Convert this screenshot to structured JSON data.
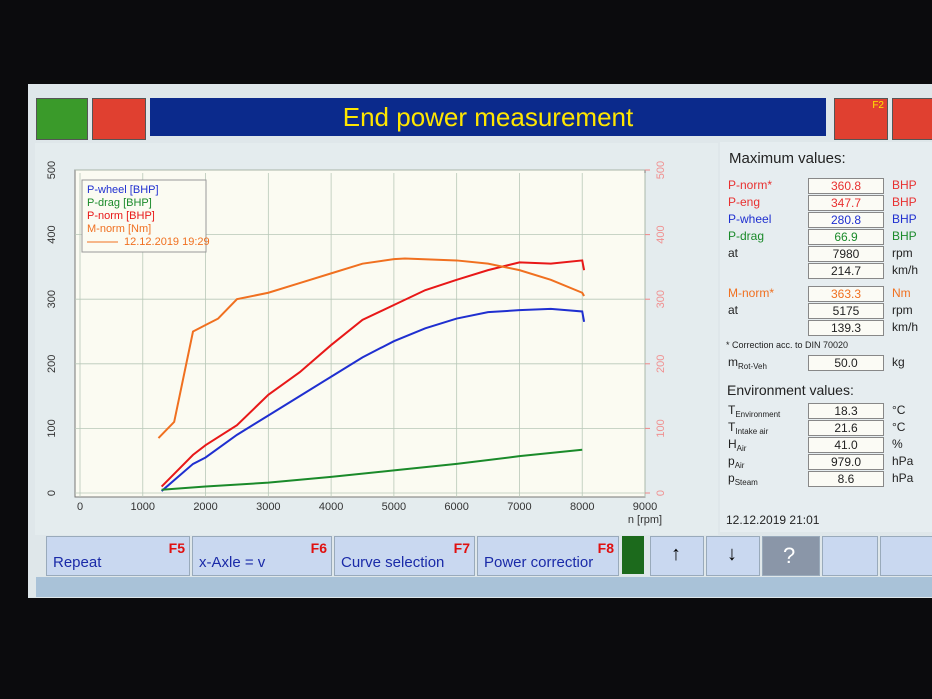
{
  "header": {
    "title": "End power measurement",
    "key": "F2"
  },
  "chart_data": {
    "type": "line",
    "x_label": "n [rpm]",
    "xlim": [
      0,
      9000
    ],
    "xticks": [
      0,
      1000,
      2000,
      3000,
      4000,
      5000,
      6000,
      7000,
      8000,
      9000
    ],
    "ylim": [
      0,
      500
    ],
    "yticks": [
      0,
      100,
      200,
      300,
      400,
      500
    ],
    "y2lim": [
      0,
      500
    ],
    "y2ticks": [
      0,
      100,
      200,
      300,
      400,
      500
    ],
    "grid": true,
    "legend_date": "12.12.2019 19:29",
    "series": [
      {
        "name": "P-wheel [BHP]",
        "color": "#1f2fd0",
        "x": [
          1300,
          1800,
          2000,
          2500,
          3000,
          3500,
          4000,
          4500,
          5000,
          5500,
          6000,
          6500,
          7000,
          7500,
          8000,
          8030
        ],
        "values": [
          3,
          45,
          55,
          90,
          120,
          150,
          180,
          210,
          235,
          255,
          270,
          280,
          283,
          285,
          281,
          265
        ]
      },
      {
        "name": "P-drag [BHP]",
        "color": "#1a8a2a",
        "x": [
          1300,
          2000,
          3000,
          4000,
          5000,
          6000,
          7000,
          8000
        ],
        "values": [
          5,
          10,
          16,
          25,
          35,
          45,
          57,
          67
        ]
      },
      {
        "name": "P-norm [BHP]",
        "color": "#e81818",
        "x": [
          1300,
          1800,
          2000,
          2500,
          3000,
          3500,
          4000,
          4500,
          5000,
          5500,
          6000,
          6500,
          7000,
          7500,
          8000,
          8030
        ],
        "values": [
          10,
          59,
          74,
          105,
          152,
          187,
          229,
          268,
          291,
          314,
          330,
          345,
          357,
          355,
          360,
          345
        ]
      },
      {
        "name": "M-norm [Nm]",
        "color": "#f07020",
        "axis": "y2",
        "x": [
          1250,
          1500,
          1800,
          2000,
          2200,
          2500,
          3000,
          3500,
          4000,
          4500,
          5000,
          5175,
          6000,
          6500,
          7000,
          7500,
          8000,
          8030
        ],
        "values": [
          85,
          110,
          250,
          260,
          270,
          300,
          310,
          325,
          340,
          355,
          362,
          363,
          360,
          355,
          345,
          330,
          310,
          305
        ]
      }
    ]
  },
  "panel": {
    "title": "Maximum values:",
    "rows": [
      {
        "label": "P-norm*",
        "value": "360.8",
        "unit": "BHP",
        "color": "#e83030"
      },
      {
        "label": "P-eng",
        "value": "347.7",
        "unit": "BHP",
        "color": "#e83030"
      },
      {
        "label": "P-wheel",
        "value": "280.8",
        "unit": "BHP",
        "color": "#1f2fd0"
      },
      {
        "label": "P-drag",
        "value": "66.9",
        "unit": "BHP",
        "color": "#1a8a2a"
      },
      {
        "label": "at",
        "value": "7980",
        "unit": "rpm",
        "color": "#222"
      },
      {
        "value": "214.7",
        "unit": "km/h",
        "color": "#222"
      },
      {
        "label": "M-norm*",
        "value": "363.3",
        "unit": "Nm",
        "color": "#f07020"
      },
      {
        "label": "at",
        "value": "5175",
        "unit": "rpm",
        "color": "#222"
      },
      {
        "value": "139.3",
        "unit": "km/h",
        "color": "#222"
      }
    ],
    "note": "* Correction acc. to DIN 70020",
    "mass": {
      "label": "m",
      "sub": "Rot-Veh",
      "value": "50.0",
      "unit": "kg"
    },
    "env_title": "Environment values:",
    "env": [
      {
        "label": "T",
        "sub": "Environment",
        "value": "18.3",
        "unit": "°C"
      },
      {
        "label": "T",
        "sub": "Intake air",
        "value": "21.6",
        "unit": "°C"
      },
      {
        "label": "H",
        "sub": "Air",
        "value": "41.0",
        "unit": "%"
      },
      {
        "label": "p",
        "sub": "Air",
        "value": "979.0",
        "unit": "hPa"
      },
      {
        "label": "p",
        "sub": "Steam",
        "value": "8.6",
        "unit": "hPa"
      }
    ],
    "date": "12.12.2019 21:01"
  },
  "buttons": [
    {
      "label": "Repeat",
      "key": "F5"
    },
    {
      "label": "x-Axle = v",
      "key": "F6"
    },
    {
      "label": "Curve selection",
      "key": "F7"
    },
    {
      "label": "Power correctior",
      "key": "F8"
    }
  ]
}
